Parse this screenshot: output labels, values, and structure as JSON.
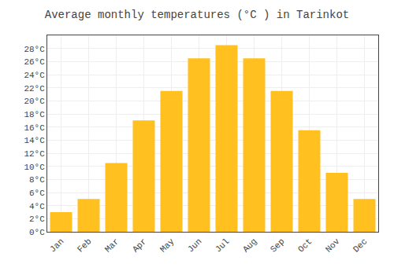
{
  "chart_data": {
    "type": "bar",
    "title": "Average monthly temperatures (°C ) in Tarinkot",
    "categories": [
      "Jan",
      "Feb",
      "Mar",
      "Apr",
      "May",
      "Jun",
      "Jul",
      "Aug",
      "Sep",
      "Oct",
      "Nov",
      "Dec"
    ],
    "values": [
      3,
      5,
      10.5,
      17,
      21.5,
      26.5,
      28.5,
      26.5,
      21.5,
      15.5,
      9,
      5
    ],
    "color": "#FFC020",
    "ylim": [
      0,
      30
    ],
    "yticks": [
      {
        "value": 0,
        "label": "0°C"
      },
      {
        "value": 2,
        "label": "2°C"
      },
      {
        "value": 4,
        "label": "4°C"
      },
      {
        "value": 6,
        "label": "6°C"
      },
      {
        "value": 8,
        "label": "8°C"
      },
      {
        "value": 10,
        "label": "10°C"
      },
      {
        "value": 12,
        "label": "12°C"
      },
      {
        "value": 14,
        "label": "14°C"
      },
      {
        "value": 16,
        "label": "16°C"
      },
      {
        "value": 18,
        "label": "18°C"
      },
      {
        "value": 20,
        "label": "20°C"
      },
      {
        "value": 22,
        "label": "22°C"
      },
      {
        "value": 24,
        "label": "24°C"
      },
      {
        "value": 26,
        "label": "26°C"
      },
      {
        "value": 28,
        "label": "28°C"
      }
    ],
    "grid": true
  }
}
